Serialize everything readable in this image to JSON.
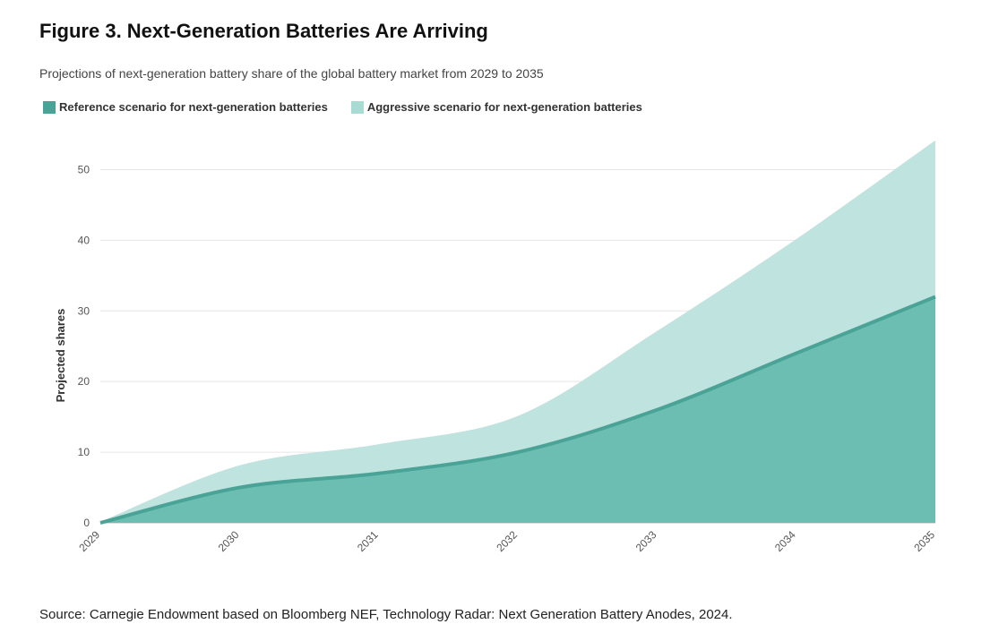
{
  "header": {
    "title": "Figure 3. Next-Generation Batteries Are Arriving",
    "subtitle": "Projections of next-generation battery share of the global battery market from 2029 to 2035"
  },
  "footer": {
    "source": "Source: Carnegie Endowment based on Bloomberg NEF, Technology Radar: Next Generation Battery Anodes, 2024."
  },
  "chart_data": {
    "type": "area",
    "title": "Figure 3. Next-Generation Batteries Are Arriving",
    "subtitle": "Projections of next-generation battery share of the global battery market from 2029 to 2035",
    "xlabel": "",
    "ylabel": "Projected shares",
    "x": [
      "2029",
      "2030",
      "2031",
      "2032",
      "2033",
      "2034",
      "2035"
    ],
    "ylim": [
      0,
      55
    ],
    "yticks": [
      0,
      10,
      20,
      30,
      40,
      50
    ],
    "grid": true,
    "legend_position": "top-left",
    "series": [
      {
        "name": "Aggressive scenario for next-generation batteries",
        "values": [
          0,
          8,
          11,
          15,
          27,
          40,
          54
        ],
        "color": "#bfe3de"
      },
      {
        "name": "Reference scenario for next-generation batteries",
        "values": [
          0,
          5,
          7,
          10,
          16,
          24,
          32
        ],
        "color": "#6cbdb2",
        "line_color": "#4aa397"
      }
    ],
    "legend_swatches": [
      "#4aa397",
      "#a8dbd4"
    ]
  }
}
